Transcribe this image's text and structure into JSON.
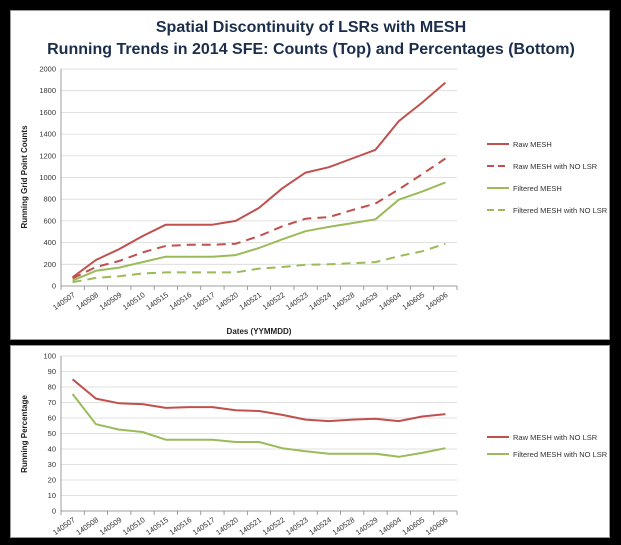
{
  "chart_data": [
    {
      "type": "line",
      "title": [
        "Spatial Discontinuity of LSRs with MESH",
        "Running Trends in 2014 SFE:  Counts (Top) and Percentages (Bottom)"
      ],
      "xlabel": "Dates (YYMMDD)",
      "ylabel": "Running Grid Point Counts",
      "categories": [
        "140507",
        "140508",
        "140509",
        "140510",
        "140515",
        "140516",
        "140517",
        "140520",
        "140521",
        "140522",
        "140523",
        "140524",
        "140528",
        "140529",
        "140604",
        "140605",
        "140606"
      ],
      "ylim": [
        0,
        2000
      ],
      "yticks": [
        0,
        200,
        400,
        600,
        800,
        1000,
        1200,
        1400,
        1600,
        1800,
        2000
      ],
      "grid": true,
      "legend_position": "right",
      "series": [
        {
          "name": "Raw MESH",
          "color": "#c0504d",
          "dash": "solid",
          "values": [
            80,
            240,
            340,
            460,
            565,
            565,
            565,
            600,
            720,
            900,
            1045,
            1095,
            1175,
            1255,
            1520,
            1690,
            1875
          ]
        },
        {
          "name": "Raw MESH with NO LSR",
          "color": "#c0504d",
          "dash": "dashed",
          "values": [
            70,
            175,
            230,
            310,
            370,
            380,
            380,
            390,
            460,
            550,
            620,
            635,
            700,
            760,
            890,
            1030,
            1175
          ]
        },
        {
          "name": "Filtered MESH",
          "color": "#9bbb59",
          "dash": "solid",
          "values": [
            50,
            140,
            170,
            220,
            270,
            270,
            270,
            285,
            350,
            430,
            505,
            545,
            580,
            615,
            795,
            870,
            955
          ]
        },
        {
          "name": "Filtered MESH with NO LSR",
          "color": "#9bbb59",
          "dash": "dashed",
          "values": [
            35,
            75,
            90,
            115,
            125,
            125,
            125,
            125,
            160,
            175,
            195,
            200,
            210,
            220,
            275,
            320,
            390
          ]
        }
      ]
    },
    {
      "type": "line",
      "ylabel": "Running Percentage",
      "categories": [
        "140507",
        "140508",
        "140509",
        "140510",
        "140515",
        "140516",
        "140517",
        "140520",
        "140521",
        "140522",
        "140523",
        "140524",
        "140528",
        "140529",
        "140604",
        "140605",
        "140606"
      ],
      "ylim": [
        0,
        100
      ],
      "yticks": [
        0,
        10,
        20,
        30,
        40,
        50,
        60,
        70,
        80,
        90,
        100
      ],
      "grid": true,
      "legend_position": "right",
      "series": [
        {
          "name": "Raw MESH with NO LSR",
          "color": "#c0504d",
          "dash": "solid",
          "values": [
            85,
            72.5,
            69.5,
            69,
            66.5,
            67,
            67,
            65,
            64.5,
            62,
            59,
            58,
            59,
            59.5,
            58,
            61,
            62.5
          ]
        },
        {
          "name": "Filtered MESH with NO LSR",
          "color": "#9bbb59",
          "dash": "solid",
          "values": [
            75.5,
            56,
            52.5,
            51,
            46,
            46,
            46,
            44.5,
            44.5,
            40.5,
            38.5,
            37,
            37,
            37,
            35,
            37.5,
            40.5
          ]
        }
      ]
    }
  ]
}
